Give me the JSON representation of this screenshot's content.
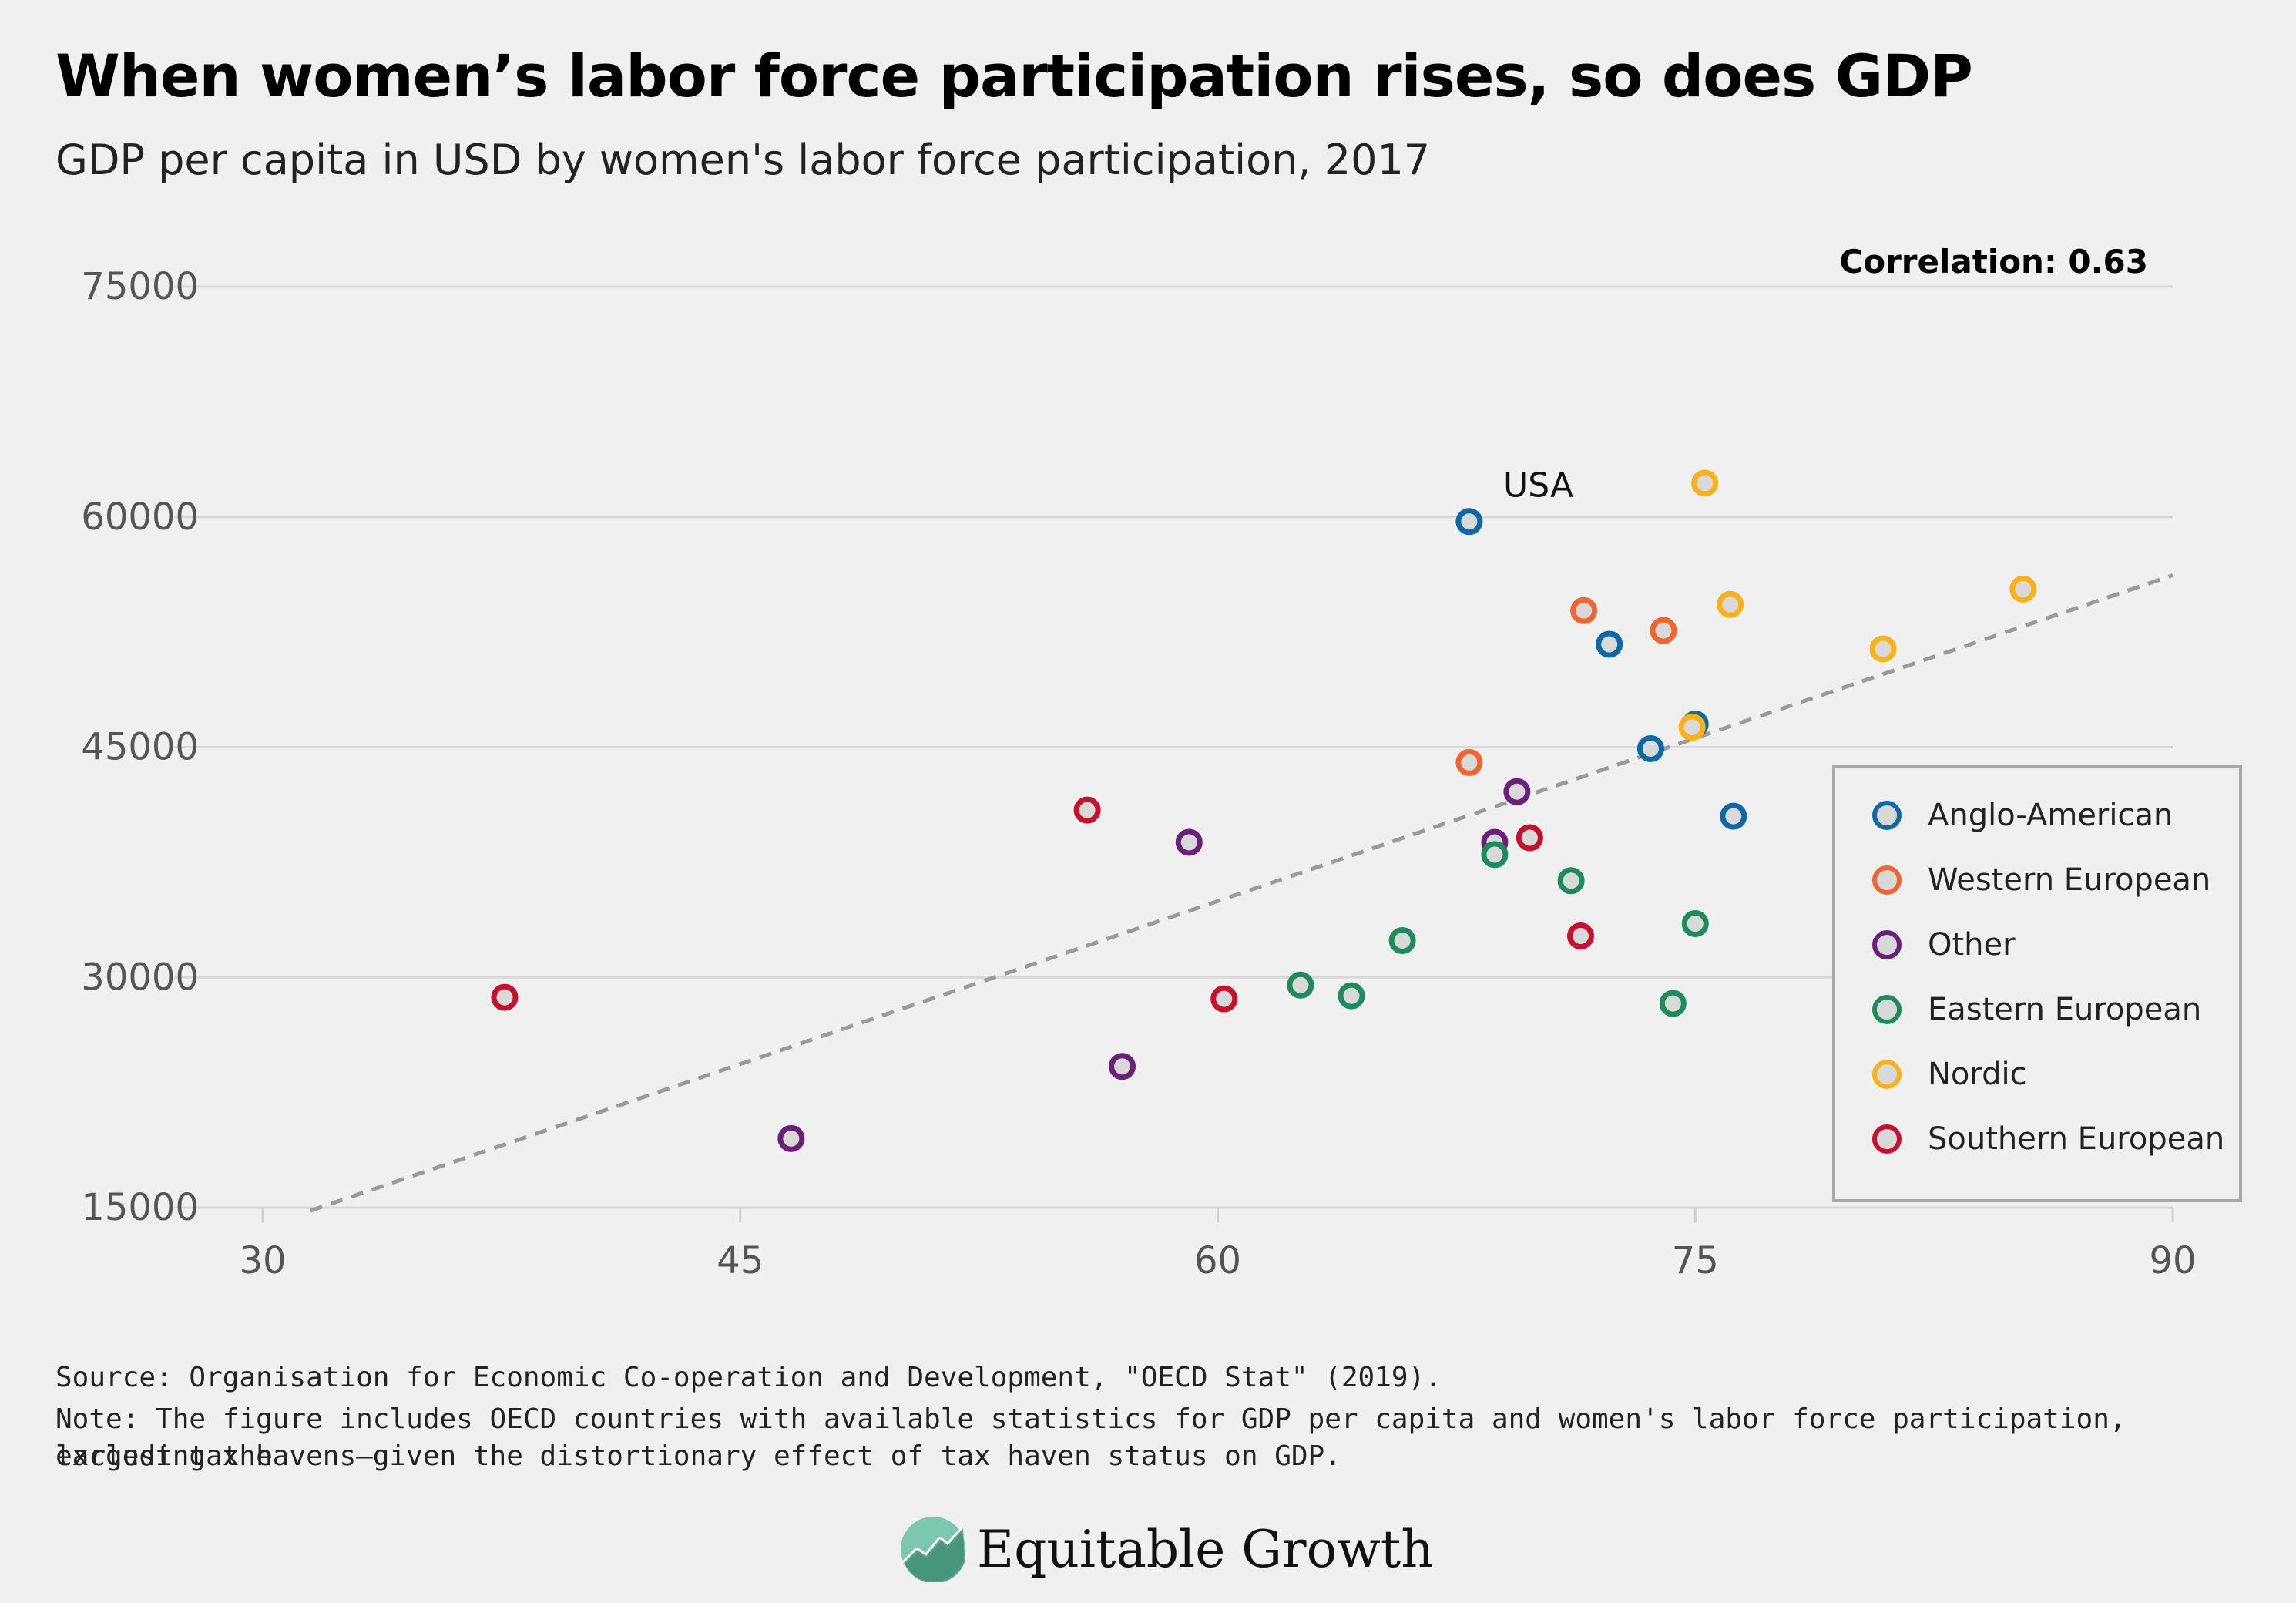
{
  "title": "When women’s labor force participation rises, so does GDP",
  "subtitle": "GDP per capita in USD by women's labor force participation, 2017",
  "correlation_label": "Correlation: 0.63",
  "source_note": "Source: Organisation for Economic Co-operation and Development, \"OECD Stat\" (2019).",
  "note_line1": "Note: The figure includes OECD countries with available statistics for GDP per capita and women's labor force participation, excluding the",
  "note_line2": "largest tax havens—given the distortionary effect of tax haven status on GDP.",
  "logo_text": "Equitable Growth",
  "chart_data": {
    "type": "scatter",
    "title": "When women’s labor force participation rises, so does GDP",
    "subtitle": "GDP per capita in USD by women's labor force participation, 2017",
    "xlim": [
      30,
      90
    ],
    "ylim": [
      15000,
      75000
    ],
    "x_ticks": [
      "30",
      "45",
      "60",
      "75",
      "90"
    ],
    "y_ticks": [
      "15000",
      "30000",
      "45000",
      "60000",
      "75000"
    ],
    "grid": "horizontal",
    "legend_position": "right",
    "trendline": {
      "style": "dashed",
      "color": "#9a9a9a",
      "from": [
        31.5,
        14800
      ],
      "to": [
        90,
        56200
      ]
    },
    "annotations": [
      {
        "text": "USA",
        "x": 68,
        "y": 59800
      }
    ],
    "series": [
      {
        "name": "Anglo-American",
        "color": "#0b6aa5",
        "points": [
          [
            67.9,
            59700
          ],
          [
            72.3,
            51700
          ],
          [
            73.6,
            44900
          ],
          [
            75.0,
            46500
          ],
          [
            76.2,
            40500
          ]
        ]
      },
      {
        "name": "Western European",
        "color": "#f26430",
        "points": [
          [
            71.5,
            53900
          ],
          [
            74.0,
            52600
          ],
          [
            67.9,
            44000
          ]
        ]
      },
      {
        "name": "Other",
        "color": "#6a1f7a",
        "points": [
          [
            69.4,
            42100
          ],
          [
            68.7,
            38800
          ],
          [
            59.1,
            38800
          ],
          [
            57.0,
            24200
          ],
          [
            46.6,
            19500
          ]
        ]
      },
      {
        "name": "Eastern European",
        "color": "#1e8c5a",
        "points": [
          [
            68.7,
            38000
          ],
          [
            71.1,
            36300
          ],
          [
            75.0,
            33500
          ],
          [
            65.8,
            32400
          ],
          [
            62.6,
            29500
          ],
          [
            64.2,
            28800
          ],
          [
            74.3,
            28300
          ]
        ]
      },
      {
        "name": "Nordic",
        "color": "#fbb117",
        "points": [
          [
            75.3,
            62200
          ],
          [
            76.1,
            54300
          ],
          [
            85.3,
            55300
          ],
          [
            80.9,
            51400
          ],
          [
            74.9,
            46300
          ]
        ]
      },
      {
        "name": "Southern European",
        "color": "#c8102e",
        "points": [
          [
            55.9,
            40900
          ],
          [
            69.8,
            39100
          ],
          [
            71.4,
            32700
          ],
          [
            60.2,
            28600
          ],
          [
            37.6,
            28700
          ]
        ]
      }
    ]
  }
}
